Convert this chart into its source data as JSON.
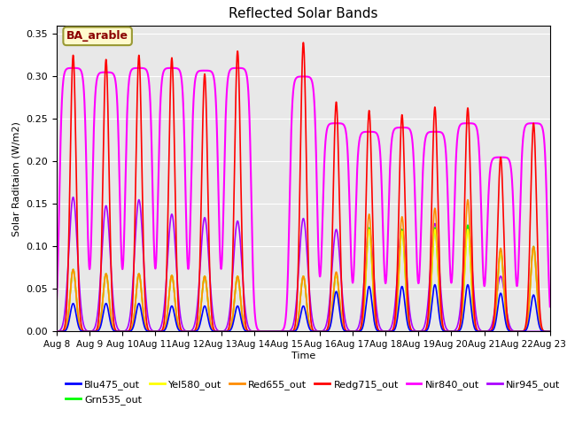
{
  "title": "Reflected Solar Bands",
  "xlabel": "Time",
  "ylabel": "Solar Raditaion (W/m2)",
  "annotation": "BA_arable",
  "annotation_color": "#8B0000",
  "annotation_bg": "#FFFACD",
  "annotation_edge": "#999933",
  "ylim": [
    0.0,
    0.36
  ],
  "yticks": [
    0.0,
    0.05,
    0.1,
    0.15,
    0.2,
    0.25,
    0.3,
    0.35
  ],
  "bg_color": "#E8E8E8",
  "series": {
    "Blu475_out": {
      "color": "#0000FF",
      "lw": 1.2
    },
    "Grn535_out": {
      "color": "#00FF00",
      "lw": 1.2
    },
    "Yel580_out": {
      "color": "#FFFF00",
      "lw": 1.2
    },
    "Red655_out": {
      "color": "#FF8C00",
      "lw": 1.2
    },
    "Redg715_out": {
      "color": "#FF0000",
      "lw": 1.2
    },
    "Nir840_out": {
      "color": "#FF00FF",
      "lw": 1.5
    },
    "Nir945_out": {
      "color": "#AA00FF",
      "lw": 1.2
    }
  },
  "xtick_labels": [
    "Aug 8",
    "Aug 9",
    "Aug 10",
    "Aug 11",
    "Aug 12",
    "Aug 13",
    "Aug 14",
    "Aug 15",
    "Aug 16",
    "Aug 17",
    "Aug 18",
    "Aug 19",
    "Aug 20",
    "Aug 21",
    "Aug 22",
    "Aug 23"
  ],
  "n_days": 15,
  "peak_heights_redg": [
    0.325,
    0.32,
    0.325,
    0.322,
    0.303,
    0.33,
    0.0,
    0.34,
    0.27,
    0.26,
    0.255,
    0.264,
    0.263,
    0.205,
    0.245
  ],
  "peak_heights_nir840": [
    0.31,
    0.305,
    0.31,
    0.31,
    0.307,
    0.31,
    0.0,
    0.3,
    0.245,
    0.235,
    0.24,
    0.235,
    0.245,
    0.205,
    0.245
  ],
  "peak_heights_nir945": [
    0.158,
    0.148,
    0.155,
    0.138,
    0.134,
    0.13,
    0.0,
    0.133,
    0.12,
    0.12,
    0.12,
    0.127,
    0.125,
    0.065,
    0.0
  ],
  "peak_heights_blu": [
    0.033,
    0.033,
    0.033,
    0.03,
    0.03,
    0.03,
    0.0,
    0.03,
    0.047,
    0.053,
    0.053,
    0.055,
    0.055,
    0.045,
    0.043
  ],
  "peak_heights_grn": [
    0.073,
    0.068,
    0.068,
    0.066,
    0.065,
    0.065,
    0.0,
    0.065,
    0.067,
    0.122,
    0.12,
    0.122,
    0.125,
    0.095,
    0.1
  ],
  "peak_heights_yel": [
    0.073,
    0.068,
    0.068,
    0.066,
    0.065,
    0.065,
    0.0,
    0.065,
    0.067,
    0.12,
    0.118,
    0.12,
    0.12,
    0.093,
    0.098
  ],
  "peak_heights_red": [
    0.073,
    0.068,
    0.068,
    0.066,
    0.065,
    0.065,
    0.0,
    0.065,
    0.07,
    0.138,
    0.135,
    0.145,
    0.155,
    0.098,
    0.1
  ],
  "sigma_narrow": 0.09,
  "sigma_medium": 0.13,
  "sigma_wide": 0.3,
  "nir840_halfwidth": 0.42,
  "nir840_rise": 0.04
}
